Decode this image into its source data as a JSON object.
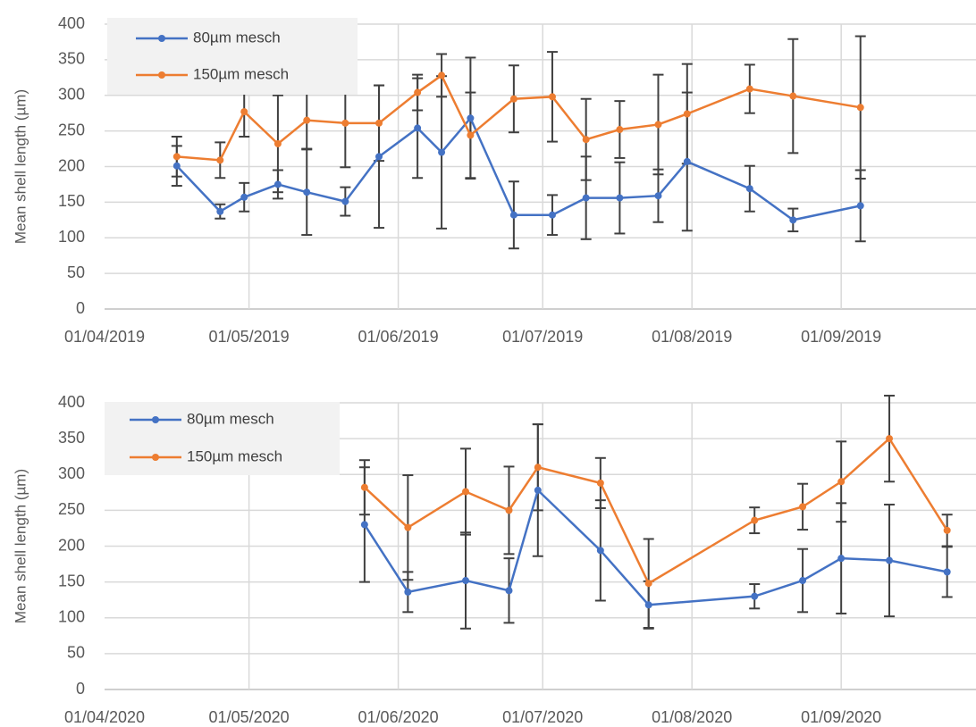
{
  "chart_data": [
    {
      "type": "line",
      "y_label": "Mean shell length (µm)",
      "xlim": [
        "01/04/2019",
        "29/09/2019"
      ],
      "xticks": [
        "01/04/2019",
        "01/05/2019",
        "01/06/2019",
        "01/07/2019",
        "01/08/2019",
        "01/09/2019"
      ],
      "ylim": [
        0,
        400
      ],
      "yticks": [
        0,
        50,
        100,
        150,
        200,
        250,
        300,
        350,
        400
      ],
      "grid": true,
      "legend": "upper left",
      "x": [
        "16/04/2019",
        "25/04/2019",
        "30/04/2019",
        "07/05/2019",
        "13/05/2019",
        "21/05/2019",
        "28/05/2019",
        "05/06/2019",
        "10/06/2019",
        "16/06/2019",
        "25/06/2019",
        "03/07/2019",
        "10/07/2019",
        "17/07/2019",
        "25/07/2019",
        "31/07/2019",
        "13/08/2019",
        "22/08/2019",
        "05/09/2019"
      ],
      "series": [
        {
          "name": "80µm mesch",
          "color": "#4472c4",
          "values": [
            201,
            137,
            157,
            175,
            164,
            151,
            214,
            254,
            220,
            268,
            132,
            132,
            156,
            156,
            159,
            207,
            169,
            125,
            145
          ],
          "errors": [
            28,
            10,
            20,
            20,
            60,
            20,
            100,
            70,
            107,
            85,
            47,
            28,
            58,
            50,
            37,
            97,
            32,
            16,
            50
          ]
        },
        {
          "name": "150µm mesch",
          "color": "#ed7d31",
          "values": [
            214,
            209,
            277,
            232,
            265,
            261,
            261,
            304,
            328,
            244,
            295,
            298,
            238,
            252,
            259,
            274,
            309,
            299,
            283
          ],
          "errors": [
            28,
            25,
            35,
            68,
            40,
            62,
            53,
            25,
            30,
            60,
            47,
            63,
            57,
            40,
            70,
            70,
            34,
            80,
            100
          ]
        }
      ]
    },
    {
      "type": "line",
      "y_label": "Mean shell length (µm)",
      "xlim": [
        "01/04/2020",
        "29/09/2020"
      ],
      "xticks": [
        "01/04/2020",
        "01/05/2020",
        "01/06/2020",
        "01/07/2020",
        "01/08/2020",
        "01/09/2020"
      ],
      "ylim": [
        0,
        400
      ],
      "yticks": [
        0,
        50,
        100,
        150,
        200,
        250,
        300,
        350,
        400
      ],
      "grid": true,
      "legend": "upper left",
      "x": [
        "25/05/2020",
        "03/06/2020",
        "15/06/2020",
        "24/06/2020",
        "30/06/2020",
        "13/07/2020",
        "23/07/2020",
        "14/08/2020",
        "24/08/2020",
        "01/09/2020",
        "11/09/2020",
        "23/09/2020"
      ],
      "series": [
        {
          "name": "80µm mesch",
          "color": "#4472c4",
          "values": [
            230,
            136,
            152,
            138,
            278,
            194,
            118,
            130,
            152,
            183,
            180,
            164
          ],
          "errors": [
            80,
            28,
            67,
            45,
            92,
            70,
            33,
            17,
            44,
            77,
            78,
            35
          ]
        },
        {
          "name": "150µm mesch",
          "color": "#ed7d31",
          "values": [
            282,
            226,
            276,
            250,
            310,
            288,
            148,
            236,
            255,
            290,
            350,
            222
          ],
          "errors": [
            38,
            73,
            60,
            61,
            60,
            35,
            62,
            18,
            32,
            56,
            60,
            22
          ]
        }
      ]
    }
  ]
}
